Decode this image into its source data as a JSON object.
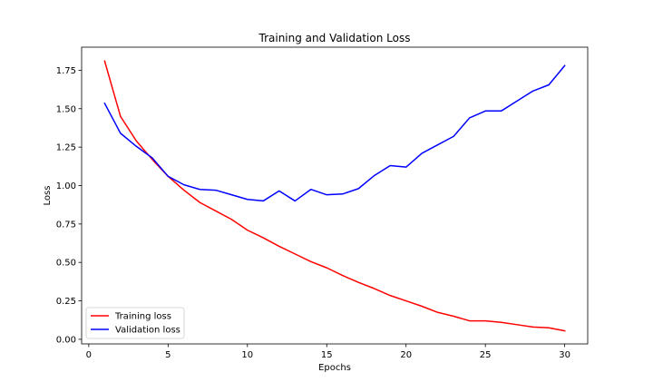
{
  "chart_data": {
    "type": "line",
    "title": "Training and Validation Loss",
    "xlabel": "Epochs",
    "ylabel": "Loss",
    "xlim": [
      -0.45,
      31.45
    ],
    "ylim": [
      -0.03,
      1.9
    ],
    "x_ticks": [
      0,
      5,
      10,
      15,
      20,
      25,
      30
    ],
    "y_ticks": [
      0.0,
      0.25,
      0.5,
      0.75,
      1.0,
      1.25,
      1.5,
      1.75
    ],
    "y_tick_labels": [
      "0.00",
      "0.25",
      "0.50",
      "0.75",
      "1.00",
      "1.25",
      "1.50",
      "1.75"
    ],
    "grid": false,
    "legend_position": "lower left",
    "x": [
      1,
      2,
      3,
      4,
      5,
      6,
      7,
      8,
      9,
      10,
      11,
      12,
      13,
      14,
      15,
      16,
      17,
      18,
      19,
      20,
      21,
      22,
      23,
      24,
      25,
      26,
      27,
      28,
      29,
      30
    ],
    "series": [
      {
        "name": "Training loss",
        "color": "#ff0000",
        "values": [
          1.81,
          1.45,
          1.29,
          1.17,
          1.06,
          0.97,
          0.89,
          0.835,
          0.78,
          0.71,
          0.66,
          0.605,
          0.555,
          0.505,
          0.465,
          0.415,
          0.37,
          0.33,
          0.285,
          0.25,
          0.215,
          0.175,
          0.15,
          0.12,
          0.12,
          0.11,
          0.095,
          0.08,
          0.075,
          0.055
        ]
      },
      {
        "name": "Validation loss",
        "color": "#0000ff",
        "values": [
          1.535,
          1.34,
          1.255,
          1.18,
          1.06,
          1.005,
          0.975,
          0.97,
          0.94,
          0.91,
          0.9,
          0.965,
          0.9,
          0.975,
          0.94,
          0.945,
          0.98,
          1.065,
          1.13,
          1.12,
          1.21,
          1.265,
          1.32,
          1.44,
          1.485,
          1.485,
          1.55,
          1.615,
          1.655,
          1.78
        ]
      }
    ]
  }
}
